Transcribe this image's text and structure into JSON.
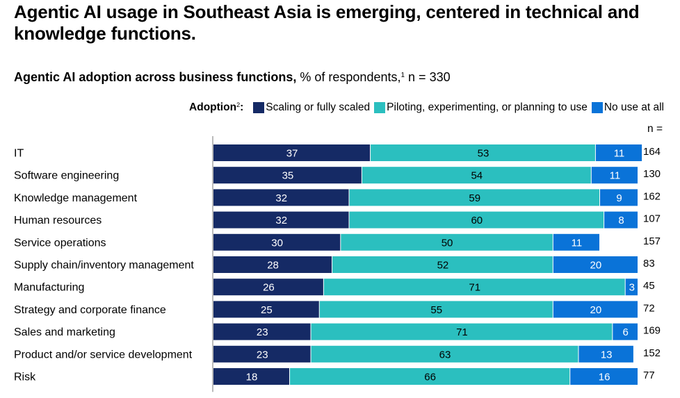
{
  "chart_data": {
    "type": "bar",
    "orientation": "horizontal",
    "stacked": true,
    "title": "Agentic AI usage in Southeast Asia is emerging, centered in technical and knowledge functions.",
    "subtitle_bold": "Agentic AI adoption across business functions,",
    "subtitle_rest": " % of respondents,",
    "subtitle_footnote": "1",
    "subtitle_n": " n = 330",
    "legend_label": "Adoption",
    "legend_footnote": "2",
    "legend_colon": ":",
    "legend_position": "top-right",
    "n_header": "n =",
    "xlabel": "",
    "ylabel": "",
    "xlim": [
      0,
      100
    ],
    "grid": false,
    "categories": [
      "IT",
      "Software engineering",
      "Knowledge management",
      "Human resources",
      "Service operations",
      "Supply chain/inventory management",
      "Manufacturing",
      "Strategy and corporate finance",
      "Sales and marketing",
      "Product and/or service development",
      "Risk"
    ],
    "series": [
      {
        "name": "Scaling or fully scaled",
        "color": "#152A65",
        "text_color": "#FFFFFF",
        "values": [
          37,
          35,
          32,
          32,
          30,
          28,
          26,
          25,
          23,
          23,
          18
        ]
      },
      {
        "name": "Piloting, experimenting, or planning to use",
        "color": "#2BBFBF",
        "text_color": "#000000",
        "values": [
          53,
          54,
          59,
          60,
          50,
          52,
          71,
          55,
          71,
          63,
          66
        ]
      },
      {
        "name": "No use at all",
        "color": "#0A73D8",
        "text_color": "#FFFFFF",
        "values": [
          11,
          11,
          9,
          8,
          11,
          20,
          3,
          20,
          6,
          13,
          16
        ]
      }
    ],
    "n_values": [
      164,
      130,
      162,
      107,
      157,
      83,
      45,
      72,
      169,
      152,
      77
    ]
  }
}
